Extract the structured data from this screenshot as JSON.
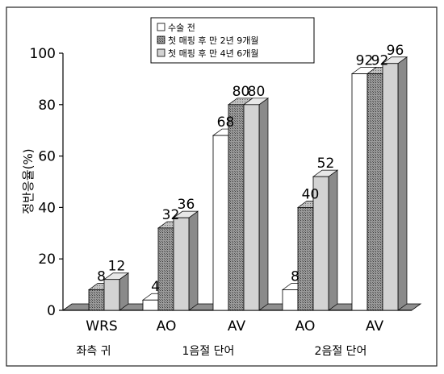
{
  "chart_data": {
    "type": "bar",
    "title": "",
    "ylabel": "정반응율(%)",
    "ylim": [
      0,
      100
    ],
    "yticks": [
      0,
      20,
      40,
      60,
      80,
      100
    ],
    "categories": [
      "WRS",
      "AO",
      "AV",
      "AO",
      "AV"
    ],
    "groups": [
      "좌측 귀",
      "1음절 단어",
      "2음절 단어"
    ],
    "legend_position": "top-center",
    "series": [
      {
        "name": "수술 전",
        "values": [
          0,
          4,
          68,
          8,
          92
        ],
        "color": "#ffffff",
        "value_labels": [
          "",
          "4",
          "68",
          "8",
          "92"
        ]
      },
      {
        "name": "첫 매핑 후 만 2년 9개월",
        "values": [
          8,
          32,
          80,
          40,
          92
        ],
        "color": "#808080",
        "value_labels": [
          "8",
          "32",
          "80",
          "40",
          "92"
        ]
      },
      {
        "name": "첫 매핑 후 만 4년 6개월",
        "values": [
          12,
          36,
          80,
          52,
          96
        ],
        "color": "#d3d3d3",
        "value_labels": [
          "12",
          "36",
          "80",
          "52",
          "96"
        ]
      }
    ]
  }
}
